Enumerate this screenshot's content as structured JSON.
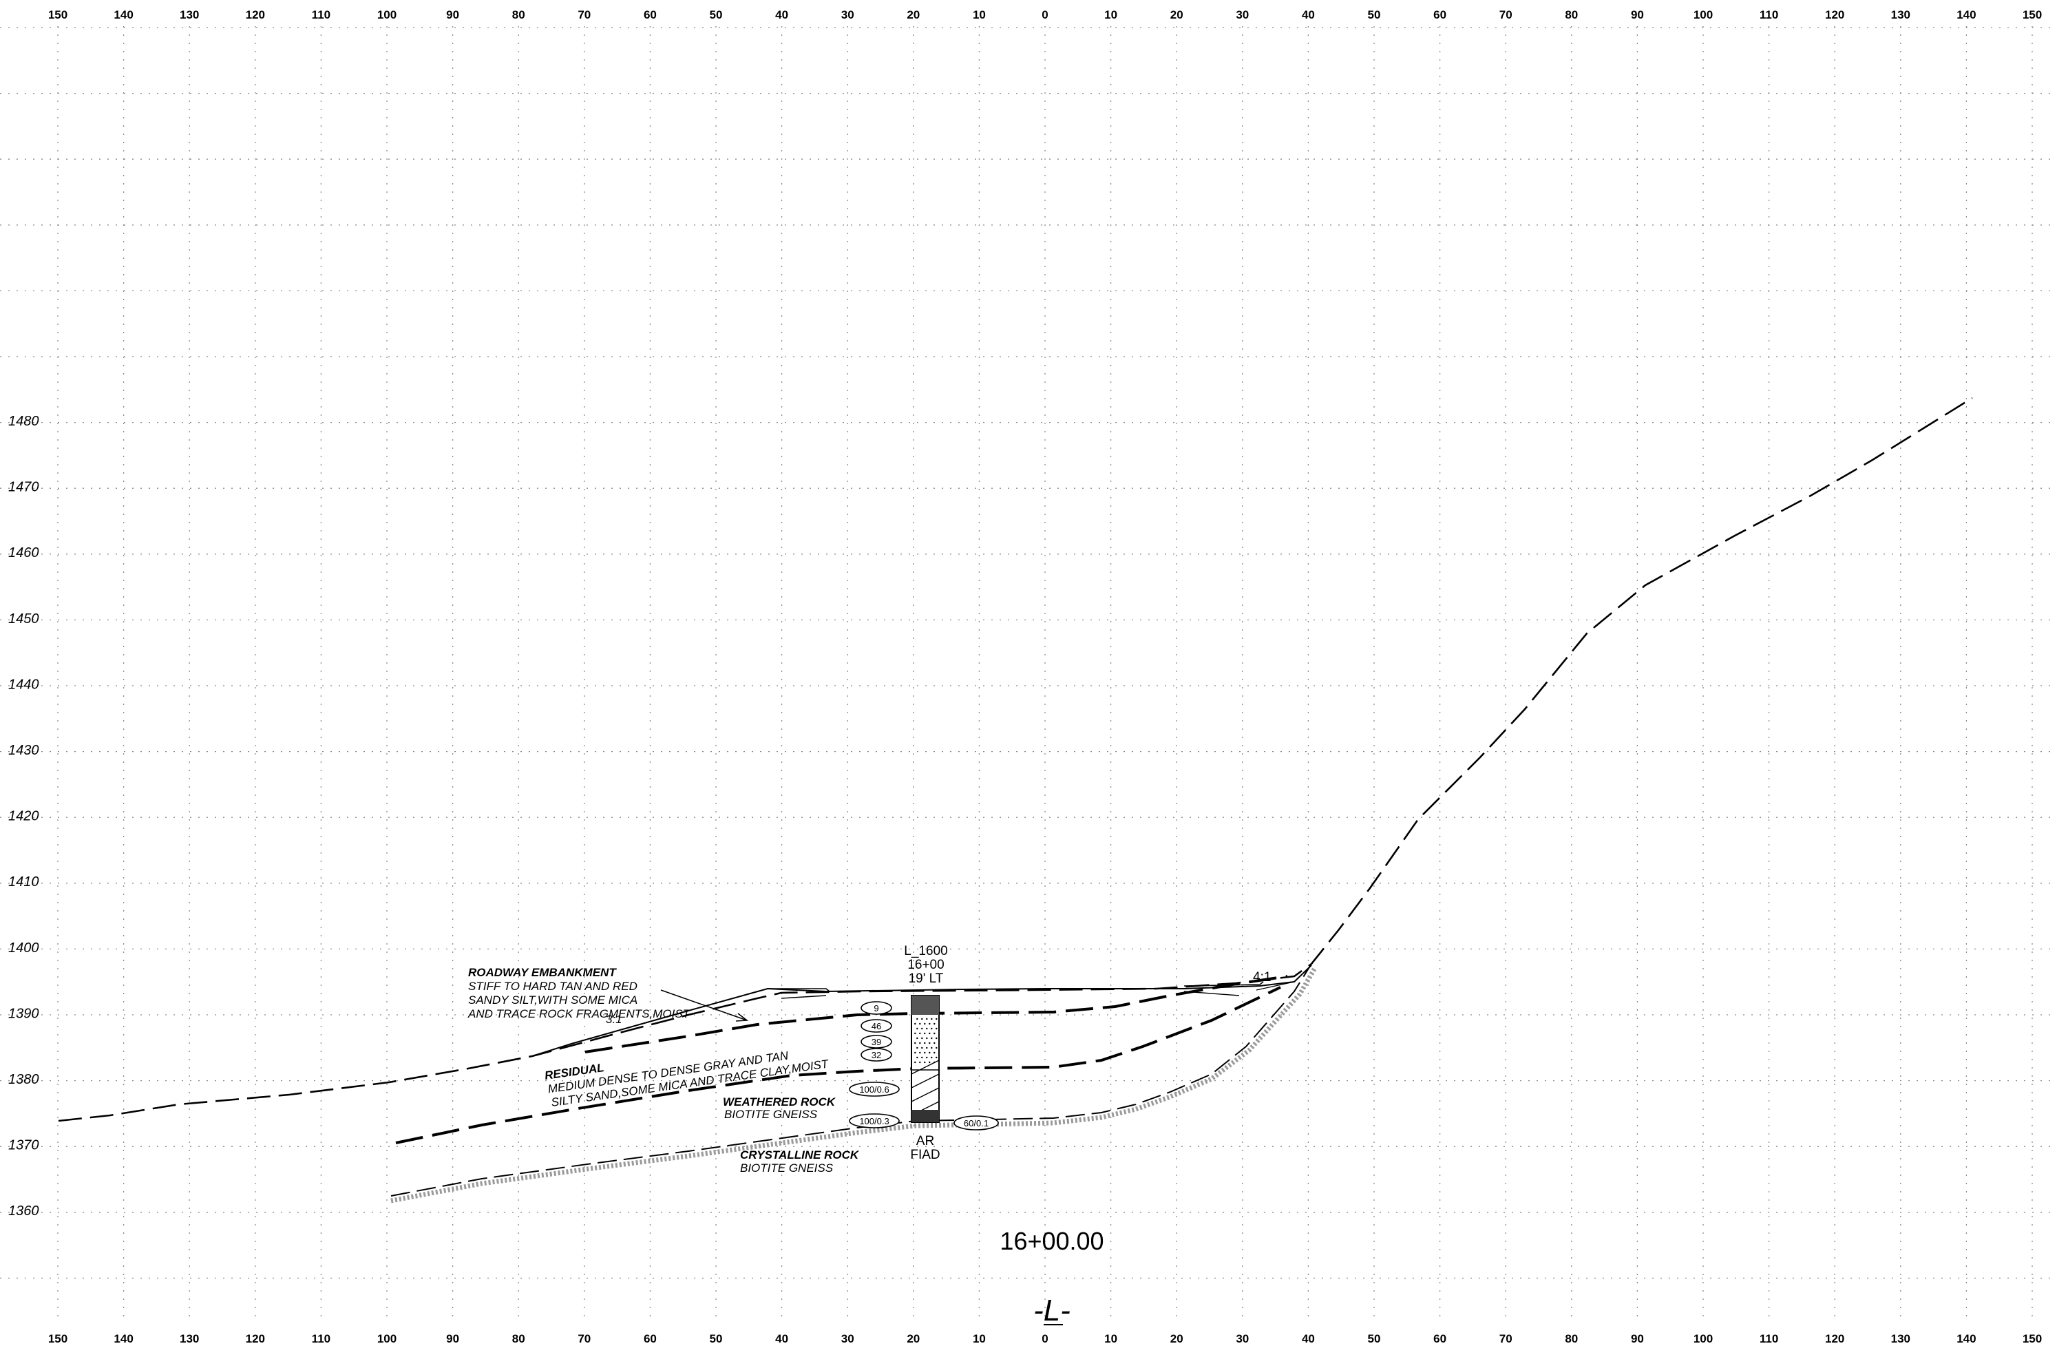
{
  "offset_labels": [
    "150",
    "140",
    "130",
    "120",
    "110",
    "100",
    "90",
    "80",
    "70",
    "60",
    "50",
    "40",
    "30",
    "20",
    "10",
    "0",
    "10",
    "20",
    "30",
    "40",
    "50",
    "60",
    "70",
    "80",
    "90",
    "100",
    "110",
    "120",
    "130",
    "140",
    "150"
  ],
  "elevation_labels": [
    "1480",
    "1470",
    "1460",
    "1450",
    "1440",
    "1430",
    "1420",
    "1410",
    "1400",
    "1390",
    "1380",
    "1370",
    "1360"
  ],
  "boring": {
    "line1": "L_1600",
    "line2": "16+00",
    "line3": "19' LT",
    "bottom1": "AR",
    "bottom2": "FIAD",
    "blow_counts": [
      "9",
      "46",
      "39",
      "32",
      "100/0.6",
      "100/0.3",
      "60/0.1"
    ]
  },
  "slopes": {
    "left": "3:1",
    "right": "4:1"
  },
  "strata": {
    "embankment": {
      "title": "ROADWAY EMBANKMENT",
      "lines": [
        "STIFF TO HARD TAN AND RED",
        "SANDY SILT,WITH SOME MICA",
        "AND TRACE ROCK FRAGMENTS,MOIST"
      ]
    },
    "residual": {
      "title": "RESIDUAL",
      "lines": [
        "MEDIUM DENSE TO DENSE GRAY AND TAN",
        "SILTY SAND,SOME MICA AND TRACE CLAY,MOIST"
      ]
    },
    "weathered": {
      "title": "WEATHERED ROCK",
      "lines": [
        "BIOTITE GNEISS"
      ]
    },
    "crystalline": {
      "title": "CRYSTALLINE ROCK",
      "lines": [
        "BIOTITE GNEISS"
      ]
    }
  },
  "station": "16+00.00",
  "alignment": "-L-"
}
